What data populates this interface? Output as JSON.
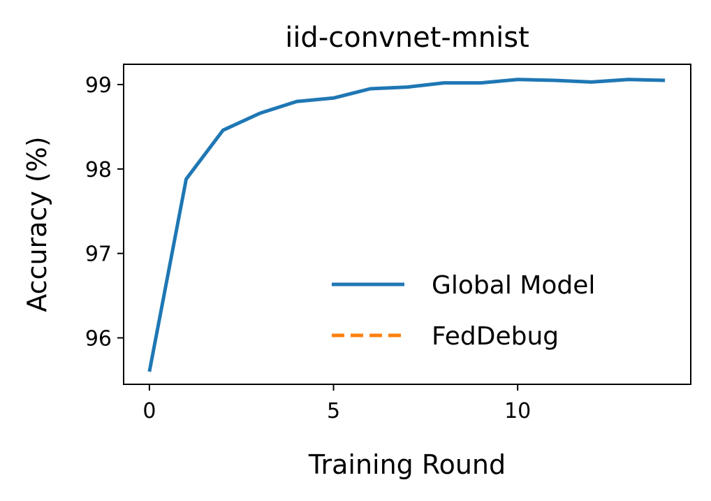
{
  "chart_data": {
    "type": "line",
    "title": "iid-convnet-mnist",
    "xlabel": "Training Round",
    "ylabel": "Accuracy (%)",
    "xlim": [
      -0.7,
      14.7
    ],
    "ylim": [
      95.45,
      99.24
    ],
    "xticks": [
      0,
      5,
      10
    ],
    "yticks": [
      96,
      97,
      98,
      99
    ],
    "grid": false,
    "legend_position": "lower-right",
    "series": [
      {
        "name": "Global Model",
        "color": "#1f77b4",
        "linestyle": "solid",
        "x": [
          0,
          1,
          2,
          3,
          4,
          5,
          6,
          7,
          8,
          9,
          10,
          11,
          12,
          13,
          14
        ],
        "y": [
          95.6,
          97.88,
          98.46,
          98.66,
          98.8,
          98.84,
          98.95,
          98.97,
          99.02,
          99.02,
          99.06,
          99.05,
          99.03,
          99.06,
          99.05
        ]
      },
      {
        "name": "FedDebug",
        "color": "#ff7f0e",
        "linestyle": "dashed",
        "x": [],
        "y": []
      }
    ]
  }
}
